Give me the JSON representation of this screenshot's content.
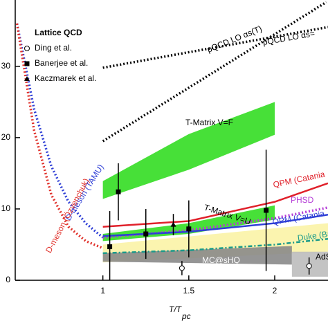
{
  "chart_data": {
    "type": "line",
    "x_label": "T/T",
    "x_label_sub": "pc",
    "xlim": [
      0.49,
      2.31
    ],
    "ylim": [
      0,
      39.3
    ],
    "xticks": [
      1,
      1.5,
      2
    ],
    "yticks": [
      0,
      10,
      20,
      30
    ],
    "legend_title": "Lattice QCD",
    "bands": [
      {
        "color": "#fbf3a6",
        "x": [
          1,
          2.31
        ],
        "lower": [
          2.5,
          4
        ],
        "upper": [
          5,
          8
        ]
      },
      {
        "name": "T-Matrix V=F",
        "color": "#33dd22",
        "x": [
          1,
          1.5,
          2
        ],
        "lower": [
          11.4,
          15.5,
          20.4
        ],
        "upper": [
          13.9,
          20.5,
          25
        ]
      },
      {
        "name": "T-Matrix V=U",
        "color": "#33dd22",
        "x": [
          1,
          1.5,
          2
        ],
        "lower": [
          5.5,
          6.5,
          8.5
        ],
        "upper": [
          6.5,
          8,
          10.5
        ]
      },
      {
        "name": "MC@sHQ",
        "color": "#8a8a8a",
        "x": [
          1,
          2.1
        ],
        "lower": [
          2.6,
          2.2
        ],
        "upper": [
          3.8,
          4.8
        ]
      },
      {
        "name": "AdS",
        "color": "#bdbdbd",
        "x": [
          2.1,
          2.31
        ],
        "lower": [
          0.5,
          0.5
        ],
        "upper": [
          4,
          4
        ]
      }
    ],
    "series": [
      {
        "name": "pQCD LO αs(T)",
        "color": "#000000",
        "style": "dot",
        "x": [
          1,
          2.3
        ],
        "values": [
          19.5,
          39
        ]
      },
      {
        "name": "pQCD LO αs=",
        "color": "#000000",
        "style": "dot",
        "x": [
          1,
          2.31
        ],
        "values": [
          29.8,
          35.5
        ]
      },
      {
        "name": "D-meson (TAMU)",
        "color": "#2f3fd6",
        "style": "dot",
        "x": [
          0.5,
          0.6,
          0.7,
          0.8,
          0.9,
          1.0
        ],
        "values": [
          36,
          24,
          16,
          11,
          8,
          6
        ]
      },
      {
        "name": "D-meson (Özvenchuk)",
        "color": "#e0302a",
        "style": "dot",
        "x": [
          0.5,
          0.6,
          0.7,
          0.8,
          0.9,
          1.0
        ],
        "values": [
          36,
          21,
          12,
          7.5,
          5.5,
          4.5
        ]
      },
      {
        "name": "QPM (Catania",
        "color": "#e0202a",
        "style": "solid",
        "x": [
          1,
          1.5,
          2,
          2.31
        ],
        "values": [
          7.5,
          8.3,
          11,
          13.6
        ]
      },
      {
        "name": "PHSD",
        "color": "#b43ad6",
        "style": "dot",
        "x": [
          1,
          1.5,
          2,
          2.31
        ],
        "values": [
          6,
          7,
          8.7,
          10.2
        ]
      },
      {
        "name": "QPM (Catania",
        "color": "#2f3fd6",
        "style": "solid",
        "x": [
          1,
          1.5,
          2,
          2.31
        ],
        "values": [
          6.2,
          6.8,
          8,
          9.2
        ]
      },
      {
        "name": "Duke (Ba",
        "color": "#1a9a8a",
        "style": "dashdot",
        "x": [
          1,
          1.5,
          2,
          2.31
        ],
        "values": [
          3.8,
          4.2,
          5,
          5.8
        ]
      }
    ],
    "points": [
      {
        "name": "Ding et al.",
        "marker": "circle",
        "x": [
          1.46,
          2.2
        ],
        "values": [
          1.7,
          2.0
        ],
        "errors": [
          1,
          1.2
        ]
      },
      {
        "name": "Banerjee et al.",
        "marker": "square",
        "x": [
          1.04,
          1.09,
          1.25,
          1.5,
          1.95
        ],
        "values": [
          4.7,
          12.4,
          6.5,
          7.2,
          9.8
        ],
        "errors": [
          5,
          4,
          3.5,
          4,
          8.5
        ]
      },
      {
        "name": "Kaczmarek et al.",
        "marker": "triangle",
        "x": [
          1.41
        ],
        "values": [
          7.8
        ],
        "errors": [
          1.5
        ]
      }
    ]
  }
}
